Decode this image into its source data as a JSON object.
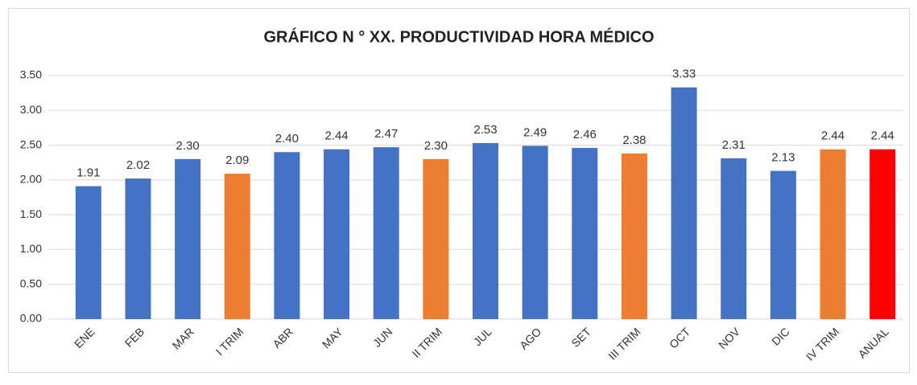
{
  "chart_data": {
    "type": "bar",
    "title": "GRÁFICO N ° XX. PRODUCTIVIDAD HORA MÉDICO",
    "categories": [
      "ENE",
      "FEB",
      "MAR",
      "I TRIM",
      "ABR",
      "MAY",
      "JUN",
      "II TRIM",
      "JUL",
      "AGO",
      "SET",
      "III TRIM",
      "OCT",
      "NOV",
      "DIC",
      "IV TRIM",
      "ANUAL"
    ],
    "values": [
      1.91,
      2.02,
      2.3,
      2.09,
      2.4,
      2.44,
      2.47,
      2.3,
      2.53,
      2.49,
      2.46,
      2.38,
      3.33,
      2.31,
      2.13,
      2.44,
      2.44
    ],
    "value_labels": [
      "1.91",
      "2.02",
      "2.30",
      "2.09",
      "2.40",
      "2.44",
      "2.47",
      "2.30",
      "2.53",
      "2.49",
      "2.46",
      "2.38",
      "3.33",
      "2.31",
      "2.13",
      "2.44",
      "2.44"
    ],
    "colors": [
      "#4472c4",
      "#4472c4",
      "#4472c4",
      "#ed7d31",
      "#4472c4",
      "#4472c4",
      "#4472c4",
      "#ed7d31",
      "#4472c4",
      "#4472c4",
      "#4472c4",
      "#ed7d31",
      "#4472c4",
      "#4472c4",
      "#4472c4",
      "#ed7d31",
      "#ff0000"
    ],
    "ylim": [
      0,
      3.5
    ],
    "yticks": [
      {
        "value": 0,
        "label": "0.00"
      },
      {
        "value": 0.5,
        "label": "0.50"
      },
      {
        "value": 1,
        "label": "1.00"
      },
      {
        "value": 1.5,
        "label": "1.50"
      },
      {
        "value": 2,
        "label": "2.00"
      },
      {
        "value": 2.5,
        "label": "2.50"
      },
      {
        "value": 3,
        "label": "3.00"
      },
      {
        "value": 3.5,
        "label": "3.50"
      }
    ],
    "grid": true
  }
}
